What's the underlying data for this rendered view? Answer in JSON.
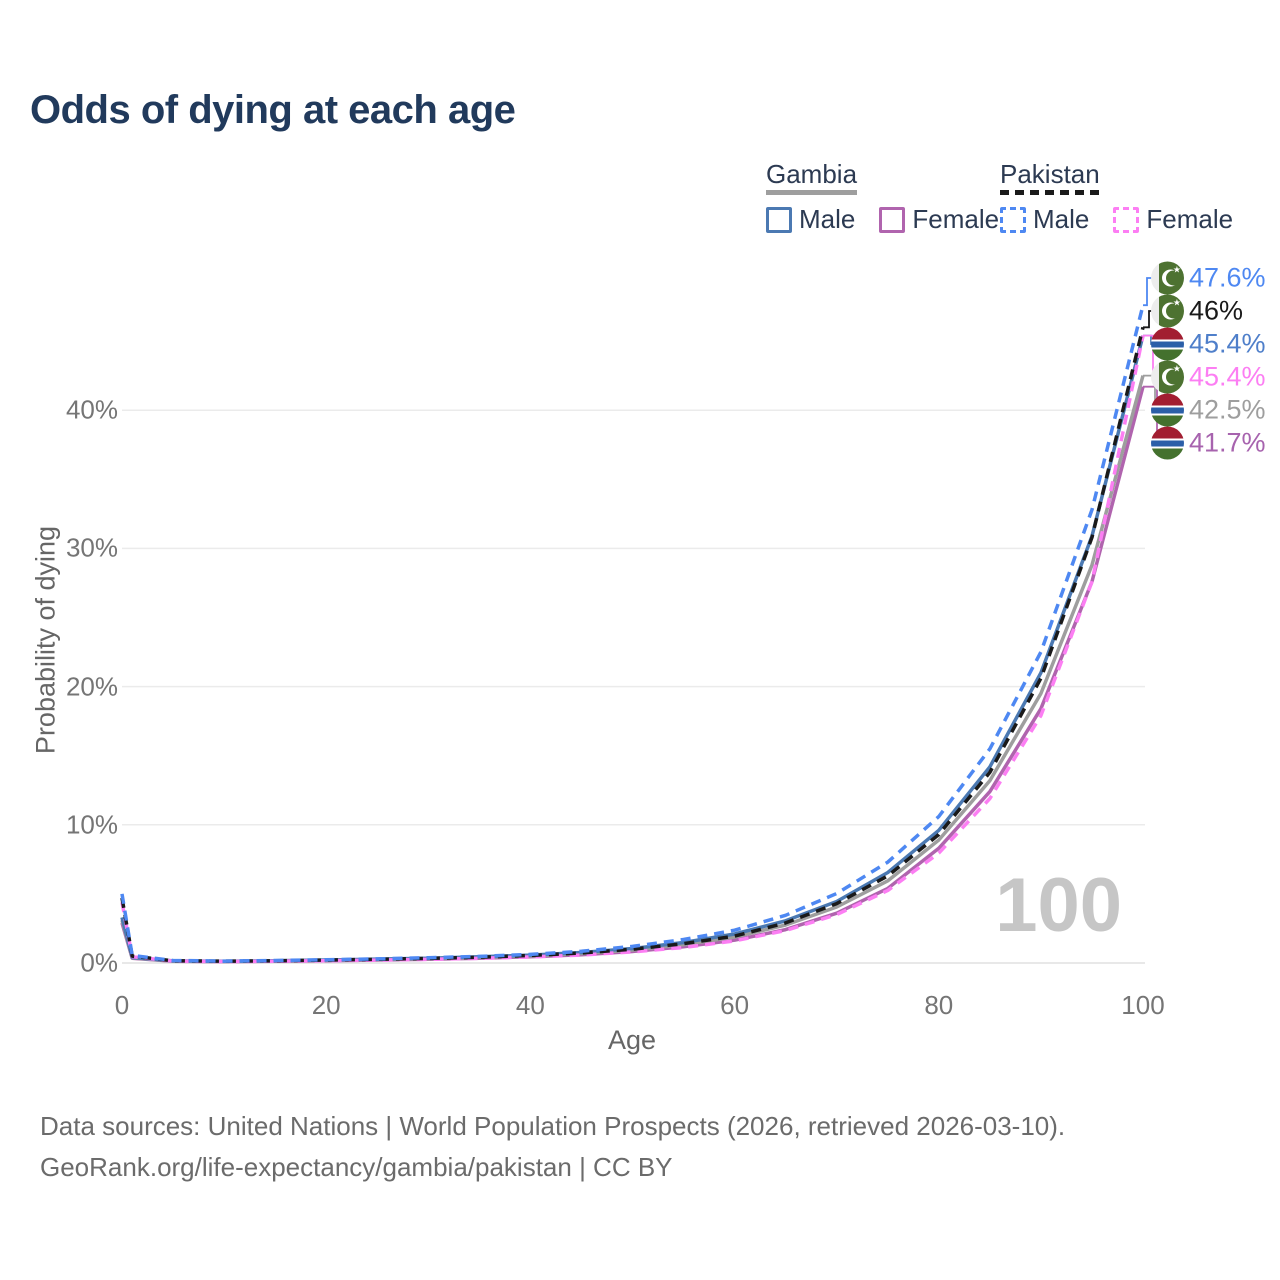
{
  "title": "Odds of dying at each age",
  "legend": {
    "groups": [
      {
        "title": "Gambia",
        "line_style": "solid",
        "line_color": "#9e9e9e",
        "items": [
          {
            "label": "Male",
            "color": "#4b79b2",
            "dash": false
          },
          {
            "label": "Female",
            "color": "#b064ae",
            "dash": false
          }
        ]
      },
      {
        "title": "Pakistan",
        "line_style": "dashed",
        "line_color": "#1a1a1a",
        "items": [
          {
            "label": "Male",
            "color": "#4e88f2",
            "dash": true
          },
          {
            "label": "Female",
            "color": "#fc7ef3",
            "dash": true
          }
        ]
      }
    ]
  },
  "chart_data": {
    "type": "line",
    "title": "Odds of dying at each age",
    "xlabel": "Age",
    "ylabel": "Probability of dying",
    "xlim": [
      0,
      100
    ],
    "ylim": [
      0,
      50
    ],
    "grid": "horizontal",
    "legend_position": "top-right",
    "watermark": "100",
    "xticks": {
      "values": [
        0,
        20,
        40,
        60,
        80,
        100
      ],
      "labels": [
        "0",
        "20",
        "40",
        "60",
        "80",
        "100"
      ]
    },
    "yticks": {
      "values": [
        0,
        10,
        20,
        30,
        40
      ],
      "labels": [
        "0%",
        "10%",
        "20%",
        "30%",
        "40%"
      ]
    },
    "x": [
      0,
      1,
      5,
      10,
      15,
      20,
      25,
      30,
      35,
      40,
      45,
      50,
      55,
      60,
      65,
      70,
      75,
      80,
      85,
      90,
      95,
      100
    ],
    "series": [
      {
        "name": "Pakistan Male",
        "country": "Pakistan",
        "sex": "Male",
        "flag": "pk",
        "line": "dashed",
        "color": "#4e88f2",
        "end_label": "47.6%",
        "label_color": "#4e88f2",
        "values": [
          5.0,
          0.55,
          0.18,
          0.14,
          0.18,
          0.24,
          0.3,
          0.38,
          0.48,
          0.62,
          0.85,
          1.2,
          1.7,
          2.37,
          3.45,
          5.03,
          7.3,
          10.6,
          15.5,
          22.5,
          32.8,
          47.6
        ]
      },
      {
        "name": "Pakistan Total",
        "country": "Pakistan",
        "sex": "Both",
        "flag": "pk",
        "line": "dashed",
        "color": "#1a1a1a",
        "end_label": "46%",
        "label_color": "#1a1a1a",
        "values": [
          4.7,
          0.5,
          0.16,
          0.13,
          0.16,
          0.21,
          0.27,
          0.33,
          0.42,
          0.54,
          0.72,
          1.0,
          1.4,
          1.95,
          2.9,
          4.3,
          6.3,
          9.3,
          13.8,
          20.6,
          30.8,
          46.0
        ]
      },
      {
        "name": "Gambia Male",
        "country": "Gambia",
        "sex": "Male",
        "flag": "gm",
        "line": "solid",
        "color": "#4b79b2",
        "end_label": "45.4%",
        "label_color": "#4f7fca",
        "values": [
          3.3,
          0.4,
          0.15,
          0.12,
          0.16,
          0.22,
          0.28,
          0.35,
          0.45,
          0.57,
          0.76,
          1.05,
          1.48,
          2.1,
          3.05,
          4.45,
          6.55,
          9.6,
          14.2,
          21.0,
          30.9,
          45.4
        ]
      },
      {
        "name": "Pakistan Female",
        "country": "Pakistan",
        "sex": "Female",
        "flag": "pk",
        "line": "dashed",
        "color": "#fc7ef3",
        "end_label": "45.4%",
        "label_color": "#fc7ef3",
        "values": [
          4.4,
          0.46,
          0.14,
          0.11,
          0.13,
          0.17,
          0.21,
          0.27,
          0.34,
          0.44,
          0.58,
          0.8,
          1.12,
          1.6,
          2.35,
          3.5,
          5.25,
          7.95,
          11.9,
          17.9,
          27.6,
          45.4
        ]
      },
      {
        "name": "Gambia Total",
        "country": "Gambia",
        "sex": "Both",
        "flag": "gm",
        "line": "solid",
        "color": "#9e9e9e",
        "end_label": "42.5%",
        "label_color": "#9e9e9e",
        "values": [
          3.1,
          0.37,
          0.14,
          0.11,
          0.15,
          0.2,
          0.25,
          0.31,
          0.4,
          0.51,
          0.68,
          0.94,
          1.33,
          1.88,
          2.75,
          4.05,
          5.95,
          8.9,
          13.2,
          19.5,
          28.8,
          42.5
        ]
      },
      {
        "name": "Gambia Female",
        "country": "Gambia",
        "sex": "Female",
        "flag": "gm",
        "line": "solid",
        "color": "#b064ae",
        "end_label": "41.7%",
        "label_color": "#a763ae",
        "values": [
          2.9,
          0.34,
          0.13,
          0.1,
          0.13,
          0.17,
          0.22,
          0.27,
          0.35,
          0.45,
          0.6,
          0.83,
          1.17,
          1.65,
          2.42,
          3.6,
          5.4,
          8.3,
          12.4,
          18.4,
          27.6,
          41.7
        ]
      }
    ]
  },
  "footer": {
    "line1": "Data sources: United Nations | World Population Prospects (2026, retrieved 2026-03-10).",
    "line2": "GeoRank.org/life-expectancy/gambia/pakistan | CC BY"
  }
}
